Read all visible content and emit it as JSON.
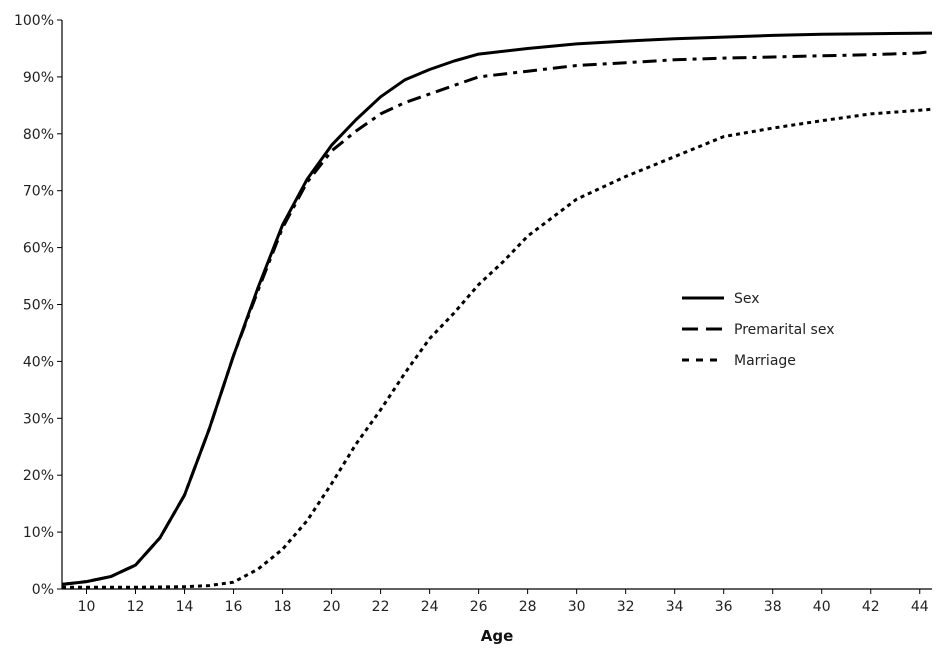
{
  "chart_data": {
    "type": "line",
    "title": "",
    "xlabel": "Age",
    "ylabel": "",
    "xlim": [
      9,
      44.5
    ],
    "ylim": [
      0,
      100
    ],
    "x_ticks": [
      10,
      12,
      14,
      16,
      18,
      20,
      22,
      24,
      26,
      28,
      30,
      32,
      34,
      36,
      38,
      40,
      42,
      44
    ],
    "x_tick_labels": [
      "10",
      "12",
      "14",
      "16",
      "18",
      "20",
      "22",
      "24",
      "26",
      "28",
      "30",
      "32",
      "34",
      "36",
      "38",
      "40",
      "42",
      "44"
    ],
    "y_ticks": [
      0,
      10,
      20,
      30,
      40,
      50,
      60,
      70,
      80,
      90,
      100
    ],
    "y_tick_labels": [
      "0%",
      "10%",
      "20%",
      "30%",
      "40%",
      "50%",
      "60%",
      "70%",
      "80%",
      "90%",
      "100%"
    ],
    "grid": false,
    "legend_position": "center-right",
    "series": [
      {
        "name": "Sex",
        "style": "solid",
        "color": "#000000",
        "x": [
          9,
          10,
          11,
          12,
          13,
          14,
          15,
          16,
          17,
          18,
          19,
          20,
          21,
          22,
          23,
          24,
          25,
          26,
          28,
          30,
          32,
          34,
          36,
          38,
          40,
          42,
          44.5
        ],
        "y": [
          0.8,
          1.3,
          2.2,
          4.2,
          9.0,
          16.5,
          28.0,
          41.0,
          53.0,
          64.0,
          72.0,
          78.0,
          82.5,
          86.5,
          89.5,
          91.3,
          92.8,
          94.0,
          95.0,
          95.8,
          96.3,
          96.7,
          97.0,
          97.3,
          97.5,
          97.6,
          97.7
        ]
      },
      {
        "name": "Premarital sex",
        "style": "dashed",
        "color": "#000000",
        "x": [
          9,
          10,
          11,
          12,
          13,
          14,
          15,
          16,
          17,
          18,
          19,
          20,
          21,
          22,
          23,
          24,
          25,
          26,
          28,
          30,
          32,
          34,
          36,
          38,
          40,
          42,
          44,
          44.5
        ],
        "y": [
          0.8,
          1.3,
          2.2,
          4.2,
          9.0,
          16.5,
          28.0,
          41.0,
          52.5,
          63.5,
          71.5,
          77.0,
          80.5,
          83.5,
          85.5,
          87.0,
          88.5,
          90.0,
          91.0,
          92.0,
          92.5,
          93.0,
          93.3,
          93.5,
          93.7,
          93.9,
          94.2,
          94.5
        ]
      },
      {
        "name": "Marriage",
        "style": "dotted",
        "color": "#000000",
        "x": [
          9,
          10,
          12,
          14,
          15,
          16,
          17,
          18,
          19,
          20,
          21,
          22,
          23,
          24,
          25,
          26,
          27,
          28,
          30,
          32,
          34,
          36,
          38,
          40,
          42,
          44.5
        ],
        "y": [
          0.3,
          0.3,
          0.3,
          0.4,
          0.6,
          1.2,
          3.5,
          7.0,
          12.0,
          18.5,
          25.5,
          31.5,
          38.0,
          44.0,
          48.5,
          53.5,
          57.5,
          62.0,
          68.5,
          72.5,
          76.0,
          79.5,
          81.0,
          82.3,
          83.5,
          84.3
        ]
      }
    ]
  }
}
